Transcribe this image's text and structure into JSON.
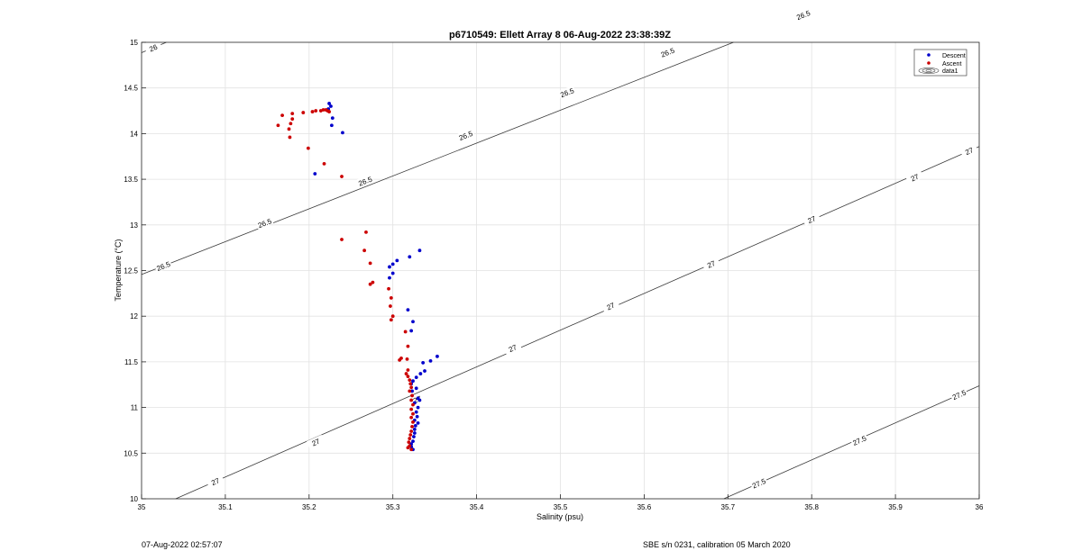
{
  "chart_data": {
    "type": "scatter",
    "title": "p6710549: Ellett Array 8 06-Aug-2022 23:38:39Z",
    "xlabel": "Salinity (psu)",
    "ylabel": "Temperature (°C)",
    "xlim": [
      35,
      36
    ],
    "ylim": [
      10,
      15
    ],
    "xticks": [
      "35",
      "35.1",
      "35.2",
      "35.3",
      "35.4",
      "35.5",
      "35.6",
      "35.7",
      "35.8",
      "35.9",
      "36"
    ],
    "yticks": [
      "10",
      "10.5",
      "11",
      "11.5",
      "12",
      "12.5",
      "13",
      "13.5",
      "14",
      "14.5",
      "15"
    ],
    "grid": true,
    "legend_position": "top-right",
    "legend": [
      "Descent",
      "Ascent",
      "data1"
    ],
    "series": [
      {
        "name": "Descent",
        "color": "#0000cc",
        "points": [
          [
            35.224,
            14.33
          ],
          [
            35.226,
            14.3
          ],
          [
            35.228,
            14.17
          ],
          [
            35.24,
            14.01
          ],
          [
            35.227,
            14.09
          ],
          [
            35.223,
            14.27
          ],
          [
            35.207,
            13.56
          ],
          [
            35.332,
            12.72
          ],
          [
            35.32,
            12.65
          ],
          [
            35.305,
            12.61
          ],
          [
            35.3,
            12.57
          ],
          [
            35.296,
            12.54
          ],
          [
            35.3,
            12.47
          ],
          [
            35.296,
            12.42
          ],
          [
            35.318,
            12.07
          ],
          [
            35.324,
            11.94
          ],
          [
            35.322,
            11.84
          ],
          [
            35.353,
            11.56
          ],
          [
            35.345,
            11.51
          ],
          [
            35.336,
            11.49
          ],
          [
            35.338,
            11.4
          ],
          [
            35.333,
            11.37
          ],
          [
            35.328,
            11.33
          ],
          [
            35.324,
            11.29
          ],
          [
            35.322,
            11.26
          ],
          [
            35.328,
            11.21
          ],
          [
            35.323,
            11.18
          ],
          [
            35.33,
            11.1
          ],
          [
            35.332,
            11.08
          ],
          [
            35.326,
            11.05
          ],
          [
            35.33,
            11.0
          ],
          [
            35.328,
            10.95
          ],
          [
            35.329,
            10.9
          ],
          [
            35.326,
            10.86
          ],
          [
            35.33,
            10.83
          ],
          [
            35.327,
            10.8
          ],
          [
            35.326,
            10.76
          ],
          [
            35.326,
            10.72
          ],
          [
            35.325,
            10.68
          ],
          [
            35.324,
            10.63
          ],
          [
            35.322,
            10.6
          ],
          [
            35.322,
            10.57
          ],
          [
            35.324,
            10.54
          ]
        ]
      },
      {
        "name": "Ascent",
        "color": "#cc0000",
        "points": [
          [
            35.163,
            14.09
          ],
          [
            35.168,
            14.2
          ],
          [
            35.178,
            14.11
          ],
          [
            35.18,
            14.16
          ],
          [
            35.18,
            14.22
          ],
          [
            35.193,
            14.23
          ],
          [
            35.204,
            14.24
          ],
          [
            35.208,
            14.25
          ],
          [
            35.214,
            14.25
          ],
          [
            35.217,
            14.26
          ],
          [
            35.22,
            14.26
          ],
          [
            35.222,
            14.25
          ],
          [
            35.224,
            14.24
          ],
          [
            35.176,
            14.05
          ],
          [
            35.177,
            13.96
          ],
          [
            35.199,
            13.84
          ],
          [
            35.218,
            13.67
          ],
          [
            35.239,
            13.53
          ],
          [
            35.268,
            12.92
          ],
          [
            35.239,
            12.84
          ],
          [
            35.266,
            12.72
          ],
          [
            35.273,
            12.58
          ],
          [
            35.276,
            12.37
          ],
          [
            35.273,
            12.35
          ],
          [
            35.295,
            12.3
          ],
          [
            35.298,
            12.2
          ],
          [
            35.297,
            12.11
          ],
          [
            35.3,
            12.0
          ],
          [
            35.298,
            11.96
          ],
          [
            35.315,
            11.83
          ],
          [
            35.318,
            11.67
          ],
          [
            35.31,
            11.54
          ],
          [
            35.308,
            11.52
          ],
          [
            35.317,
            11.53
          ],
          [
            35.318,
            11.41
          ],
          [
            35.316,
            11.37
          ],
          [
            35.318,
            11.34
          ],
          [
            35.32,
            11.3
          ],
          [
            35.321,
            11.26
          ],
          [
            35.322,
            11.22
          ],
          [
            35.32,
            11.18
          ],
          [
            35.323,
            11.13
          ],
          [
            35.322,
            11.08
          ],
          [
            35.324,
            11.03
          ],
          [
            35.322,
            10.98
          ],
          [
            35.324,
            10.93
          ],
          [
            35.322,
            10.89
          ],
          [
            35.324,
            10.84
          ],
          [
            35.323,
            10.79
          ],
          [
            35.322,
            10.74
          ],
          [
            35.321,
            10.7
          ],
          [
            35.32,
            10.66
          ],
          [
            35.319,
            10.62
          ],
          [
            35.32,
            10.58
          ],
          [
            35.318,
            10.56
          ],
          [
            35.322,
            10.54
          ]
        ]
      }
    ],
    "contours": [
      {
        "value": "26",
        "labels": [
          [
            35.014,
            14.94
          ]
        ]
      },
      {
        "value": "26.5",
        "labels": [
          [
            35.026,
            12.55
          ],
          [
            35.147,
            13.02
          ],
          [
            35.267,
            13.48
          ],
          [
            35.387,
            13.98
          ],
          [
            35.508,
            14.45
          ],
          [
            35.628,
            14.89
          ],
          [
            35.79,
            15.3
          ]
        ]
      },
      {
        "value": "27",
        "labels": [
          [
            35.088,
            10.19
          ],
          [
            35.208,
            10.62
          ],
          [
            35.329,
            11.09
          ],
          [
            35.443,
            11.65
          ],
          [
            35.56,
            12.11
          ],
          [
            35.68,
            12.57
          ],
          [
            35.8,
            13.06
          ],
          [
            35.923,
            13.52
          ],
          [
            35.988,
            13.81
          ]
        ]
      },
      {
        "value": "27.5",
        "labels": [
          [
            35.737,
            10.17
          ],
          [
            35.857,
            10.64
          ],
          [
            35.976,
            11.14
          ]
        ]
      }
    ]
  },
  "footer": {
    "left": "07-Aug-2022 02:57:07",
    "right": "SBE s/n 0231, calibration 05 March 2020"
  }
}
